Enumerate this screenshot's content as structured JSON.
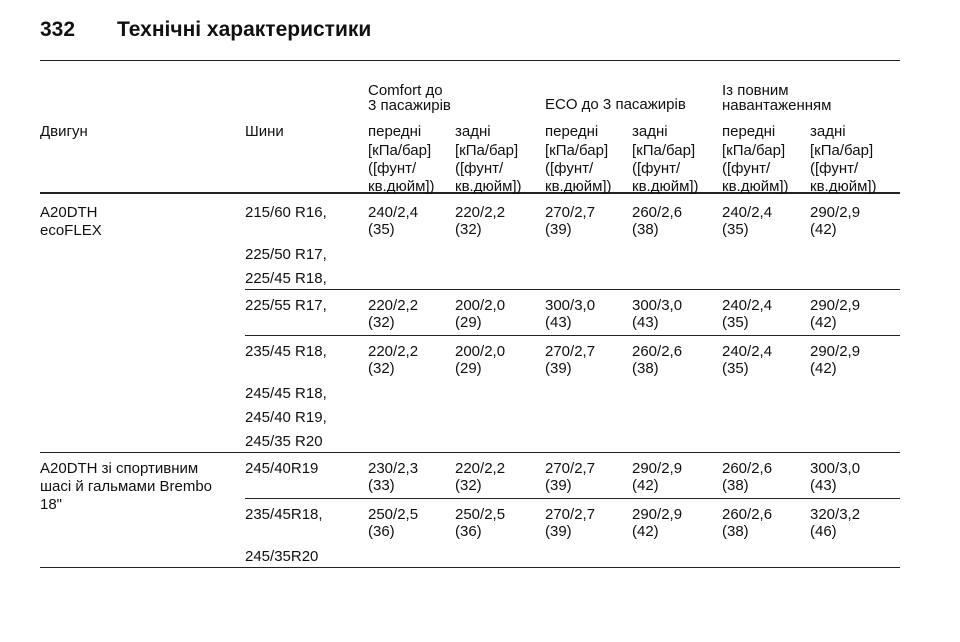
{
  "header": {
    "page_number": "332",
    "title": "Технічні характеристики"
  },
  "table": {
    "group_headers": [
      "Comfort до\n3 пасажирів",
      "ECO до 3 пасажирів",
      "Із повним\nнавантаженням"
    ],
    "columns": [
      "Двигун",
      "Шини",
      "передні",
      "задні",
      "передні",
      "задні",
      "передні",
      "задні"
    ],
    "units": [
      "[кПа/бар]\n([фунт/\nкв.дюйм])",
      "[кПа/бар]\n([фунт/\nкв.дюйм])",
      "[кПа/бар]\n([фунт/\nкв.дюйм])",
      "[кПа/бар]\n([фунт/\nкв.дюйм])",
      "[кПа/бар]\n([фунт/\nкв.дюйм])",
      "[кПа/бар]\n([фунт/\nкв.дюйм])"
    ],
    "sections": [
      {
        "engine": "A20DTH\necoFLEX",
        "rows": [
          {
            "tires": [
              "215/60 R16,",
              "225/50 R17,",
              "225/45 R18,"
            ],
            "values": [
              "240/2,4\n(35)",
              "220/2,2\n(32)",
              "270/2,7\n(39)",
              "260/2,6\n(38)",
              "240/2,4\n(35)",
              "290/2,9\n(42)"
            ]
          },
          {
            "tires": [
              "225/55 R17,"
            ],
            "values": [
              "220/2,2\n(32)",
              "200/2,0\n(29)",
              "300/3,0\n(43)",
              "300/3,0\n(43)",
              "240/2,4\n(35)",
              "290/2,9\n(42)"
            ]
          },
          {
            "tires": [
              "235/45 R18,",
              "245/45 R18,",
              "245/40 R19,",
              "245/35 R20"
            ],
            "values": [
              "220/2,2\n(32)",
              "200/2,0\n(29)",
              "270/2,7\n(39)",
              "260/2,6\n(38)",
              "240/2,4\n(35)",
              "290/2,9\n(42)"
            ]
          }
        ]
      },
      {
        "engine": "A20DTH зі спортивним\nшасі й гальмами Brembo\n18\"",
        "rows": [
          {
            "tires": [
              "245/40R19"
            ],
            "values": [
              "230/2,3\n(33)",
              "220/2,2\n(32)",
              "270/2,7\n(39)",
              "290/2,9\n(42)",
              "260/2,6\n(38)",
              "300/3,0\n(43)"
            ]
          },
          {
            "tires": [
              "235/45R18,",
              "245/35R20"
            ],
            "values": [
              "250/2,5\n(36)",
              "250/2,5\n(36)",
              "270/2,7\n(39)",
              "290/2,9\n(42)",
              "260/2,6\n(38)",
              "320/3,2\n(46)"
            ]
          }
        ]
      }
    ]
  }
}
